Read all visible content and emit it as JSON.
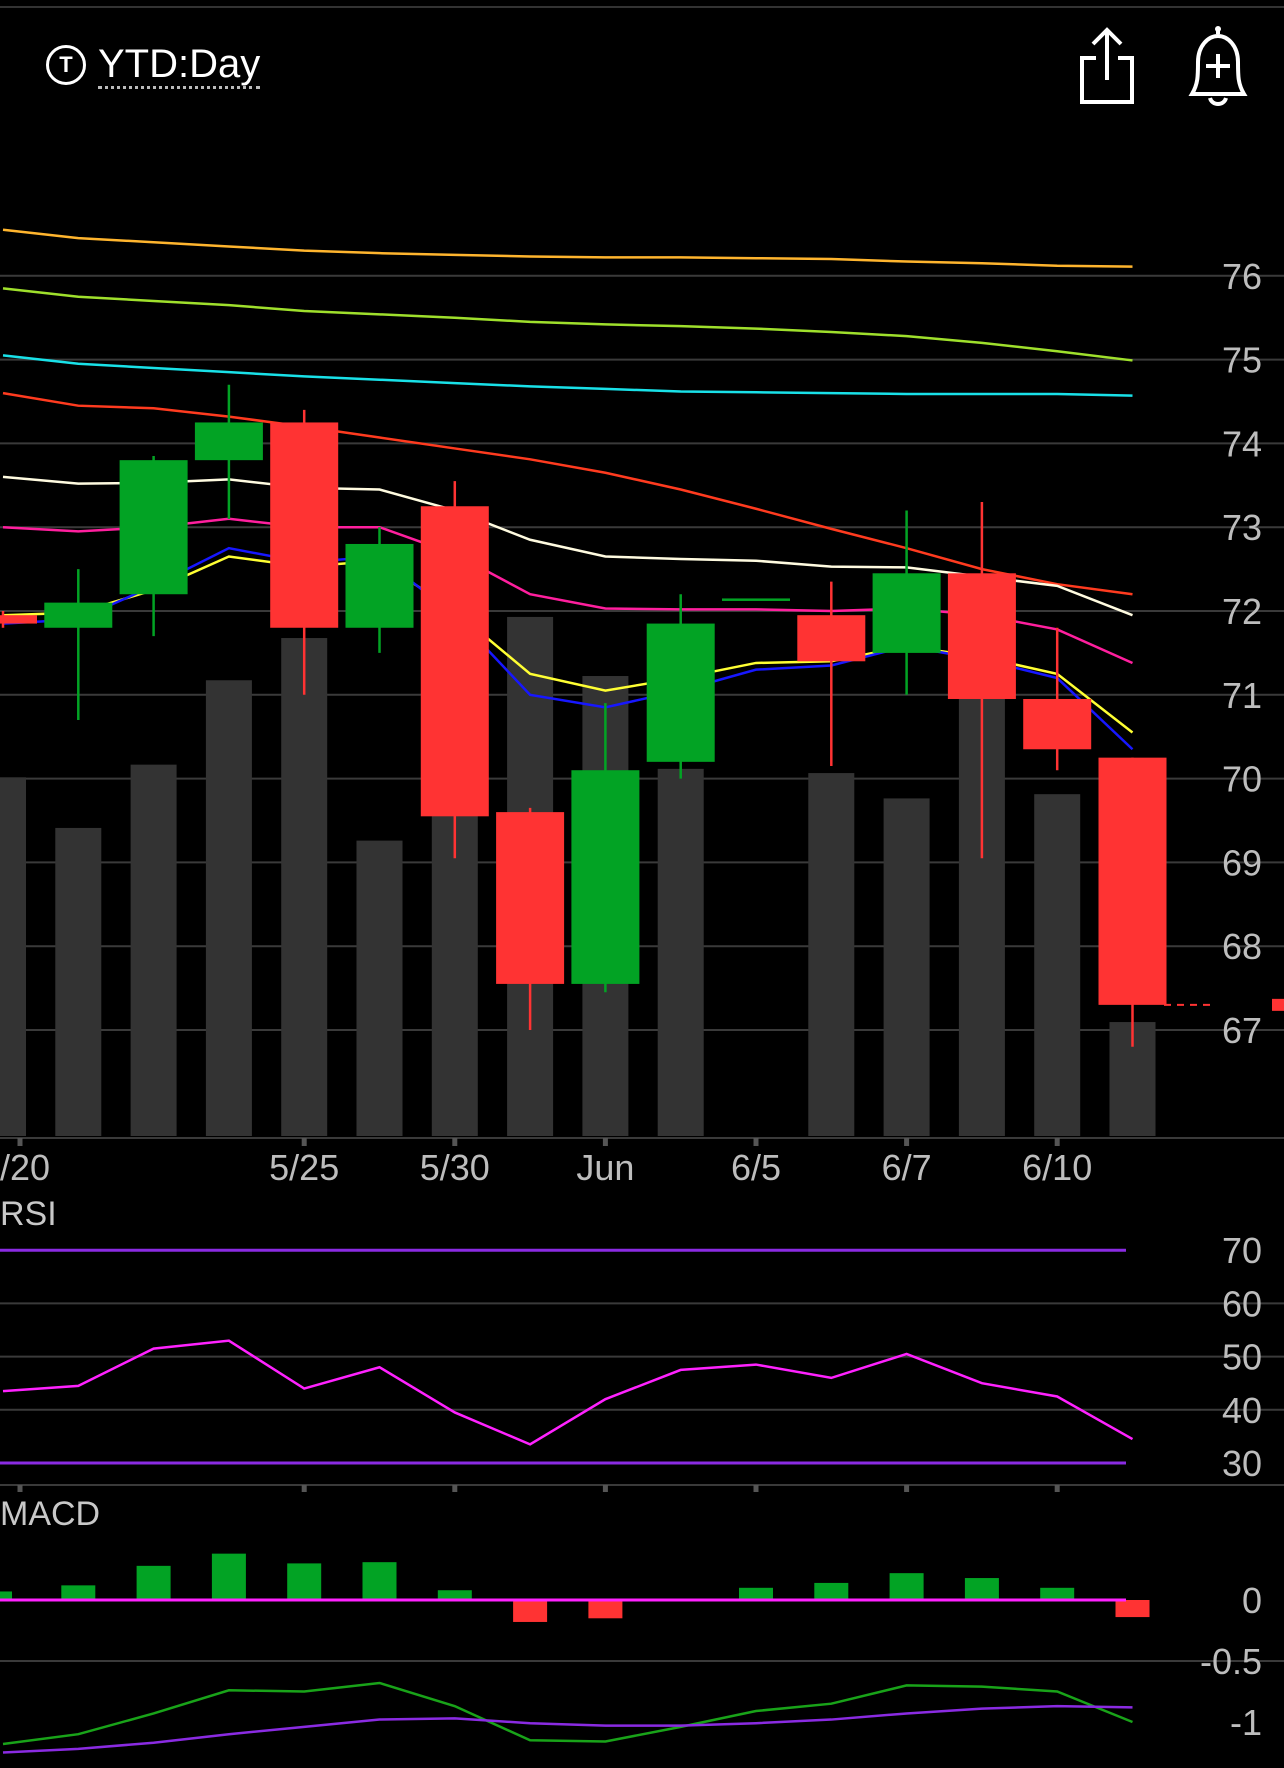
{
  "header": {
    "period_icon": "T",
    "period_label": "YTD:Day",
    "share_icon": "share-icon",
    "alert_icon": "bell-plus-icon"
  },
  "chart_data": [
    {
      "type": "candlestick",
      "ylim": [
        66,
        78
      ],
      "y_ticks": [
        67,
        68,
        69,
        70,
        71,
        72,
        73,
        74,
        75,
        76
      ],
      "x_tick_labels": [
        {
          "index": 0,
          "label": "/20"
        },
        {
          "index": 4,
          "label": "5/25"
        },
        {
          "index": 6,
          "label": "5/30"
        },
        {
          "index": 8,
          "label": "Jun"
        },
        {
          "index": 10,
          "label": "6/5"
        },
        {
          "index": 12,
          "label": "6/7"
        },
        {
          "index": 14,
          "label": "6/10"
        }
      ],
      "candles": [
        {
          "open": 71.95,
          "close": 71.85,
          "high": 72.0,
          "low": 71.8
        },
        {
          "open": 71.8,
          "close": 72.1,
          "high": 72.5,
          "low": 70.7
        },
        {
          "open": 72.2,
          "close": 73.8,
          "high": 73.85,
          "low": 71.7
        },
        {
          "open": 73.8,
          "close": 74.25,
          "high": 74.7,
          "low": 73.1
        },
        {
          "open": 74.25,
          "close": 71.8,
          "high": 74.4,
          "low": 71.0
        },
        {
          "open": 71.8,
          "close": 72.8,
          "high": 73.0,
          "low": 71.5
        },
        {
          "open": 73.25,
          "close": 69.55,
          "high": 73.55,
          "low": 69.05
        },
        {
          "open": 69.6,
          "close": 67.55,
          "high": 69.65,
          "low": 67.0
        },
        {
          "open": 67.55,
          "close": 70.1,
          "high": 70.9,
          "low": 67.45
        },
        {
          "open": 70.2,
          "close": 71.85,
          "high": 72.2,
          "low": 70.0
        },
        {
          "open": 72.15,
          "close": 72.15,
          "high": 72.15,
          "low": 72.15
        },
        {
          "open": 71.95,
          "close": 71.4,
          "high": 72.35,
          "low": 70.15
        },
        {
          "open": 71.5,
          "close": 72.45,
          "high": 73.2,
          "low": 71.0
        },
        {
          "open": 72.45,
          "close": 70.95,
          "high": 73.3,
          "low": 69.05
        },
        {
          "open": 70.95,
          "close": 70.35,
          "high": 71.8,
          "low": 70.1
        },
        {
          "open": 70.25,
          "close": 67.3,
          "high": 70.25,
          "low": 66.8
        }
      ],
      "volume": [
        0.85,
        0.73,
        0.88,
        1.08,
        1.18,
        0.7,
        0.87,
        1.23,
        1.09,
        0.87,
        0.0,
        0.86,
        0.8,
        1.22,
        0.81,
        0.27
      ],
      "last_price": 67.3,
      "series": [
        {
          "color": "#ffb52e",
          "values": [
            76.55,
            76.45,
            76.4,
            76.35,
            76.3,
            76.27,
            76.25,
            76.23,
            76.22,
            76.22,
            76.21,
            76.2,
            76.17,
            76.15,
            76.12,
            76.11
          ]
        },
        {
          "color": "#9fe02c",
          "values": [
            75.85,
            75.75,
            75.7,
            75.65,
            75.58,
            75.54,
            75.5,
            75.45,
            75.42,
            75.4,
            75.37,
            75.33,
            75.28,
            75.2,
            75.1,
            74.99
          ]
        },
        {
          "color": "#19e1e8",
          "values": [
            75.05,
            74.95,
            74.9,
            74.85,
            74.8,
            74.76,
            74.72,
            74.68,
            74.65,
            74.62,
            74.61,
            74.6,
            74.59,
            74.59,
            74.59,
            74.57
          ]
        },
        {
          "color": "#ff3b1f",
          "values": [
            74.6,
            74.45,
            74.42,
            74.32,
            74.2,
            74.07,
            73.94,
            73.81,
            73.65,
            73.45,
            73.22,
            72.98,
            72.75,
            72.5,
            72.32,
            72.2
          ]
        },
        {
          "color": "#fffbe0",
          "values": [
            73.6,
            73.52,
            73.53,
            73.57,
            73.47,
            73.45,
            73.2,
            72.85,
            72.65,
            72.62,
            72.6,
            72.53,
            72.52,
            72.41,
            72.3,
            71.95
          ]
        },
        {
          "color": "#ff1f9e",
          "values": [
            73.0,
            72.95,
            73.0,
            73.1,
            73.0,
            73.0,
            72.68,
            72.2,
            72.03,
            72.02,
            72.02,
            72.0,
            72.03,
            71.95,
            71.78,
            71.38
          ]
        },
        {
          "color": "#ffff33",
          "values": [
            71.95,
            71.98,
            72.25,
            72.65,
            72.53,
            72.6,
            72.0,
            71.25,
            71.05,
            71.2,
            71.38,
            71.4,
            71.58,
            71.45,
            71.25,
            70.55
          ]
        },
        {
          "color": "#1717ff",
          "values": [
            71.85,
            71.9,
            72.3,
            72.75,
            72.58,
            72.65,
            71.95,
            71.0,
            70.85,
            71.05,
            71.3,
            71.35,
            71.58,
            71.42,
            71.2,
            70.35
          ]
        }
      ]
    },
    {
      "type": "line",
      "title": "RSI",
      "ylim": [
        26,
        73
      ],
      "y_ticks": [
        30,
        40,
        50,
        60,
        70
      ],
      "guides": [
        30,
        70
      ],
      "series": [
        {
          "color": "#ff22ff",
          "values": [
            43.5,
            44.5,
            51.5,
            53.0,
            44.0,
            48.0,
            39.5,
            33.5,
            42.0,
            47.5,
            48.5,
            46.0,
            50.5,
            45.0,
            42.5,
            34.5
          ]
        }
      ]
    },
    {
      "type": "bar+line",
      "title": "MACD",
      "ylim": [
        -1.3,
        0.45
      ],
      "y_ticks": [
        0,
        -0.5,
        -1
      ],
      "histogram": [
        0.07,
        0.12,
        0.28,
        0.38,
        0.3,
        0.31,
        0.08,
        -0.18,
        -0.15,
        0.0,
        0.1,
        0.14,
        0.22,
        0.18,
        0.1,
        -0.14
      ],
      "series": [
        {
          "color": "#19a319",
          "values": [
            -1.18,
            -1.1,
            -0.93,
            -0.74,
            -0.75,
            -0.68,
            -0.87,
            -1.15,
            -1.16,
            -1.04,
            -0.91,
            -0.85,
            -0.7,
            -0.71,
            -0.75,
            -1.0
          ]
        },
        {
          "color": "#8a2be2",
          "values": [
            -1.25,
            -1.22,
            -1.17,
            -1.1,
            -1.04,
            -0.98,
            -0.97,
            -1.01,
            -1.03,
            -1.03,
            -1.01,
            -0.98,
            -0.93,
            -0.89,
            -0.87,
            -0.88
          ]
        }
      ]
    }
  ]
}
